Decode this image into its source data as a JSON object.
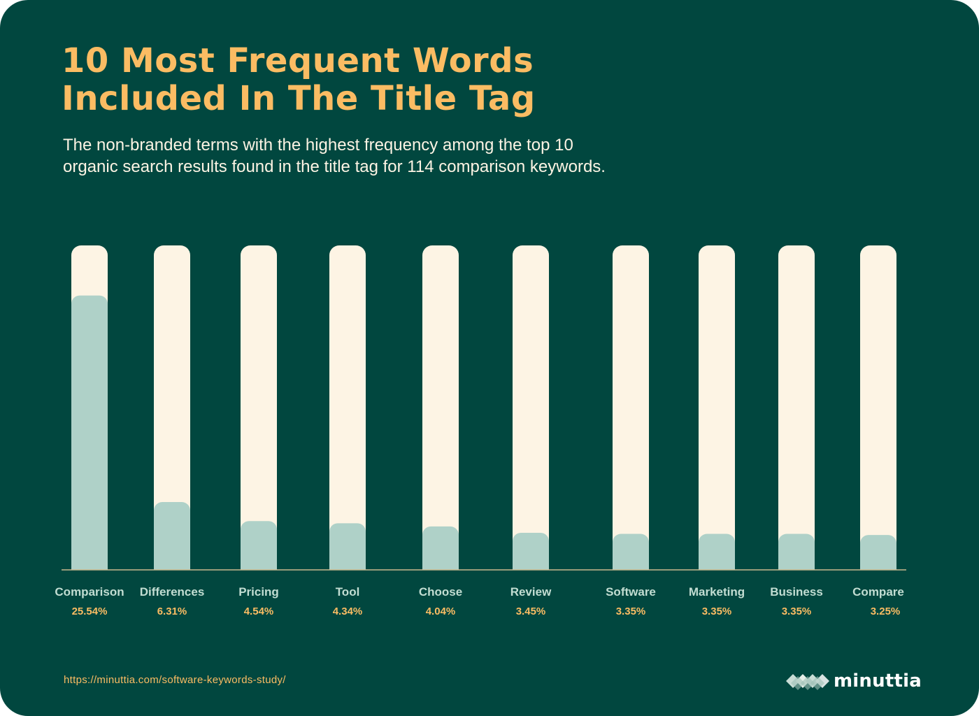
{
  "header": {
    "title_line1": "10 Most Frequent Words",
    "title_line2": "Included In The Title Tag",
    "subtitle_line1": "The non-branded terms with the highest frequency among the top 10",
    "subtitle_line2": "organic search results found in the title tag for 114 comparison keywords."
  },
  "footer": {
    "source_url": "https://minuttia.com/software-keywords-study/",
    "brand": "minuttia"
  },
  "colors": {
    "background": "#01473f",
    "title": "#fbbc63",
    "track": "#fdf4e4",
    "fill": "#afd1c8",
    "value_text": "#fbbc63",
    "label_text": "#c2ddd2"
  },
  "chart_data": {
    "type": "bar",
    "title": "10 Most Frequent Words Included In The Title Tag",
    "categories": [
      "Comparison",
      "Differences",
      "Pricing",
      "Tool",
      "Choose",
      "Review",
      "Software",
      "Marketing",
      "Business",
      "Compare"
    ],
    "values": [
      25.54,
      6.31,
      4.54,
      4.34,
      4.04,
      3.45,
      3.35,
      3.35,
      3.35,
      3.25
    ],
    "value_labels": [
      "25.54%",
      "6.31%",
      "4.54%",
      "4.34%",
      "4.04%",
      "3.45%",
      "3.35%",
      "3.35%",
      "3.35%",
      "3.25%"
    ],
    "unit": "%",
    "xlabel": "",
    "ylabel": "",
    "grid": false,
    "legend": false
  }
}
